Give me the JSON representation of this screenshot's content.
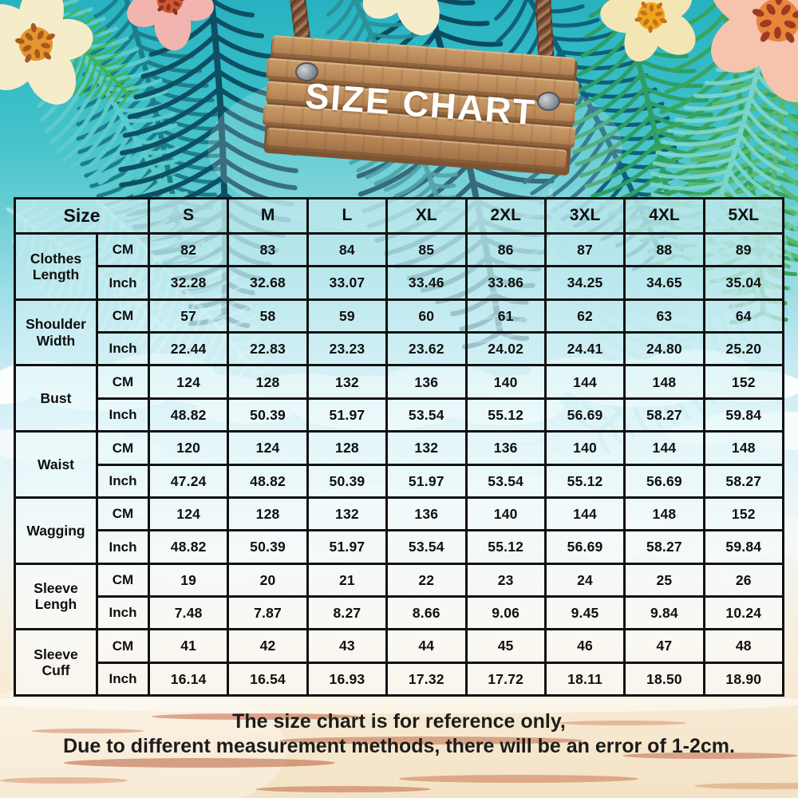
{
  "sign": {
    "title_note": "bound from chart_data.title"
  },
  "chart_data": {
    "type": "table",
    "title": "SIZE CHART",
    "corner_label": "Size",
    "columns": [
      "S",
      "M",
      "L",
      "XL",
      "2XL",
      "3XL",
      "4XL",
      "5XL"
    ],
    "unit_labels": [
      "CM",
      "Inch"
    ],
    "rows": [
      {
        "label": "Clothes Length",
        "cm": [
          "82",
          "83",
          "84",
          "85",
          "86",
          "87",
          "88",
          "89"
        ],
        "inch": [
          "32.28",
          "32.68",
          "33.07",
          "33.46",
          "33.86",
          "34.25",
          "34.65",
          "35.04"
        ]
      },
      {
        "label": "Shoulder Width",
        "cm": [
          "57",
          "58",
          "59",
          "60",
          "61",
          "62",
          "63",
          "64"
        ],
        "inch": [
          "22.44",
          "22.83",
          "23.23",
          "23.62",
          "24.02",
          "24.41",
          "24.80",
          "25.20"
        ]
      },
      {
        "label": "Bust",
        "cm": [
          "124",
          "128",
          "132",
          "136",
          "140",
          "144",
          "148",
          "152"
        ],
        "inch": [
          "48.82",
          "50.39",
          "51.97",
          "53.54",
          "55.12",
          "56.69",
          "58.27",
          "59.84"
        ]
      },
      {
        "label": "Waist",
        "cm": [
          "120",
          "124",
          "128",
          "132",
          "136",
          "140",
          "144",
          "148"
        ],
        "inch": [
          "47.24",
          "48.82",
          "50.39",
          "51.97",
          "53.54",
          "55.12",
          "56.69",
          "58.27"
        ]
      },
      {
        "label": "Wagging",
        "cm": [
          "124",
          "128",
          "132",
          "136",
          "140",
          "144",
          "148",
          "152"
        ],
        "inch": [
          "48.82",
          "50.39",
          "51.97",
          "53.54",
          "55.12",
          "56.69",
          "58.27",
          "59.84"
        ]
      },
      {
        "label": "Sleeve Lengh",
        "cm": [
          "19",
          "20",
          "21",
          "22",
          "23",
          "24",
          "25",
          "26"
        ],
        "inch": [
          "7.48",
          "7.87",
          "8.27",
          "8.66",
          "9.06",
          "9.45",
          "9.84",
          "10.24"
        ]
      },
      {
        "label": "Sleeve Cuff",
        "cm": [
          "41",
          "42",
          "43",
          "44",
          "45",
          "46",
          "47",
          "48"
        ],
        "inch": [
          "16.14",
          "16.54",
          "16.93",
          "17.32",
          "17.72",
          "18.11",
          "18.50",
          "18.90"
        ]
      }
    ]
  },
  "footer": {
    "line1": "The size chart is for reference only,",
    "line2": "Due to different measurement methods, there will be an error of 1-2cm."
  },
  "colors": {
    "teal_top": "#28b2c1",
    "sand_bottom": "#f3e2c5",
    "table_border": "#121212",
    "wood": "#bd8c5c",
    "rope": "#8d5e41",
    "palm_dark": "#0c4a5e",
    "palm_green": "#2f9e66",
    "flower_cream": "#f5ecca",
    "flower_pink": "#f6c3ad"
  }
}
